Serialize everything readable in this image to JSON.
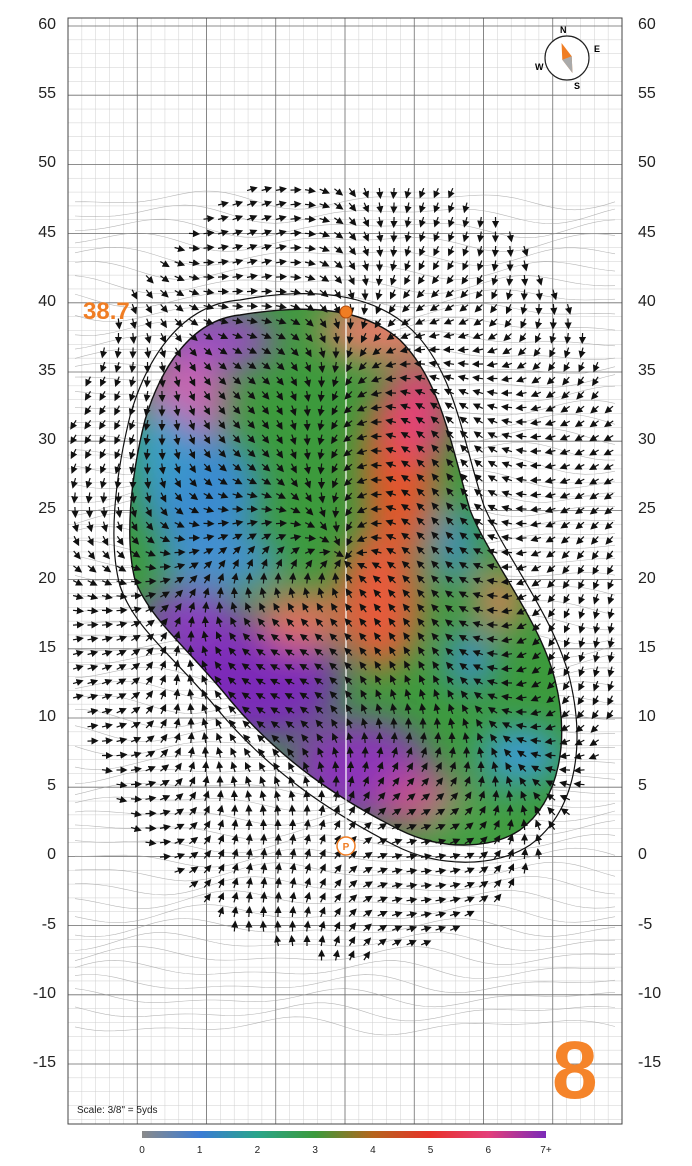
{
  "map": {
    "green_length": "38.7",
    "hole_number": "8",
    "scale_text": "Scale: 3/8\" = 5yds",
    "y_axis_labels": [
      "60",
      "55",
      "50",
      "45",
      "40",
      "35",
      "30",
      "25",
      "20",
      "15",
      "10",
      "5",
      "0",
      "-5",
      "-10",
      "-15"
    ],
    "compass": {
      "north": "N",
      "east": "E",
      "south": "S",
      "west": "W"
    },
    "pin_marker": "P",
    "slope_legend": {
      "ticks": [
        "0",
        "1",
        "2",
        "3",
        "4",
        "5",
        "6",
        "7+"
      ],
      "colors": [
        "#8a8a8a",
        "#3a7bd5",
        "#2aa58a",
        "#3c9a3c",
        "#b5651d",
        "#e8322a",
        "#e43f7a",
        "#7b2ab8"
      ]
    },
    "colors": {
      "accent": "#f07d23",
      "grid_major": "#6e6e6e",
      "grid_minor": "#cfcfcf"
    }
  }
}
